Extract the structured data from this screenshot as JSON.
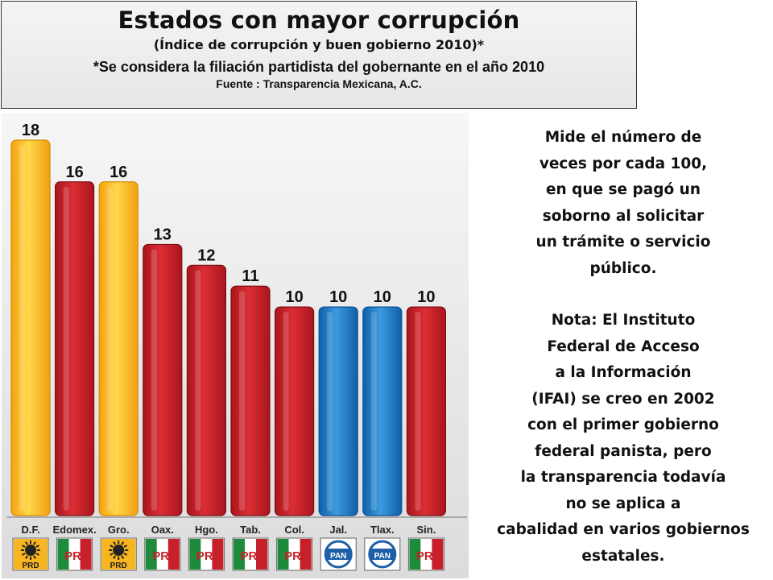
{
  "header": {
    "title": "Estados con mayor corrupción",
    "subtitle": "(Índice de corrupción y buen gobierno 2010)*",
    "note": "*Se considera la filiación partidista del gobernante en el año 2010",
    "source": "Fuente : Transparencia Mexicana, A.C."
  },
  "side_text": {
    "lines_1": [
      "Mide el número de",
      "veces por cada 100,",
      "en que se pagó un",
      "soborno al solicitar",
      "un trámite o servicio",
      "público."
    ],
    "lines_2": [
      "Nota: El Instituto",
      "Federal de Acceso",
      "a la Información",
      "(IFAI) se creo en 2002",
      "con el primer gobierno",
      "federal panista, pero",
      "la transparencia todavía",
      "no se aplica a",
      "cabalidad en varios gobiernos",
      "estatales."
    ]
  },
  "party_logos": {
    "PRD": {
      "text": "PRD",
      "icon": "prd-sun-icon"
    },
    "PRI": {
      "text": "PRI",
      "icon": "pri-tricolor-icon"
    },
    "PAN": {
      "text": "PAN",
      "icon": "pan-circle-icon"
    }
  },
  "colors": {
    "PRD": "#f7b51f",
    "PRI": "#c8202a",
    "PAN": "#1c7cc8"
  },
  "chart_data": {
    "type": "bar",
    "categories": [
      "D.F.",
      "Edomex.",
      "Gro.",
      "Oax.",
      "Hgo.",
      "Tab.",
      "Col.",
      "Jal.",
      "Tlax.",
      "Sin."
    ],
    "values": [
      18,
      16,
      16,
      13,
      12,
      11,
      10,
      10,
      10,
      10
    ],
    "party": [
      "PRD",
      "PRI",
      "PRD",
      "PRI",
      "PRI",
      "PRI",
      "PRI",
      "PAN",
      "PAN",
      "PRI"
    ],
    "data_labels": [
      "18",
      "16",
      "16",
      "13",
      "12",
      "11",
      "10",
      "10",
      "10",
      "10"
    ],
    "ylim": [
      0,
      18
    ],
    "grid": false,
    "legend": "none"
  }
}
